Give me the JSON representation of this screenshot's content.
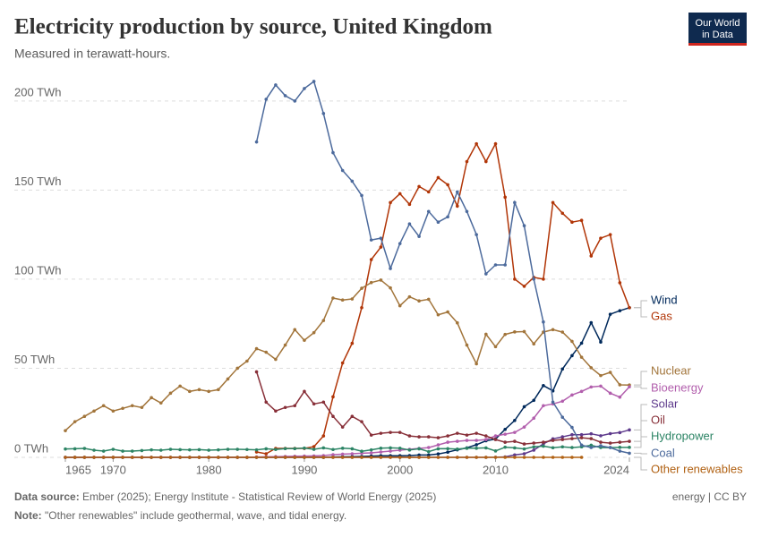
{
  "chart_data": {
    "type": "line",
    "title": "Electricity production by source, United Kingdom",
    "subtitle": "Measured in terawatt-hours.",
    "logo": [
      "Our World",
      "in Data"
    ],
    "source_label": "Data source:",
    "source": "Ember (2025); Energy Institute - Statistical Review of World Energy (2025)",
    "note_label": "Note:",
    "note": "\"Other renewables\" include geothermal, wave, and tidal energy.",
    "license": "energy | CC BY",
    "x": [
      1965,
      1966,
      1967,
      1968,
      1969,
      1970,
      1971,
      1972,
      1973,
      1974,
      1975,
      1976,
      1977,
      1978,
      1979,
      1980,
      1981,
      1982,
      1983,
      1984,
      1985,
      1986,
      1987,
      1988,
      1989,
      1990,
      1991,
      1992,
      1993,
      1994,
      1995,
      1996,
      1997,
      1998,
      1999,
      2000,
      2001,
      2002,
      2003,
      2004,
      2005,
      2006,
      2007,
      2008,
      2009,
      2010,
      2011,
      2012,
      2013,
      2014,
      2015,
      2016,
      2017,
      2018,
      2019,
      2020,
      2021,
      2022,
      2023,
      2024
    ],
    "xlim": [
      1965,
      2024
    ],
    "xticks": [
      1965,
      1970,
      1980,
      1990,
      2000,
      2010,
      2024
    ],
    "ylim": [
      0,
      215
    ],
    "yticks": [
      {
        "value": 0,
        "label": "0 TWh"
      },
      {
        "value": 50,
        "label": "50 TWh"
      },
      {
        "value": 100,
        "label": "100 TWh"
      },
      {
        "value": 150,
        "label": "150 TWh"
      },
      {
        "value": 200,
        "label": "200 TWh"
      }
    ],
    "grid": true,
    "series": [
      {
        "name": "Wind",
        "color": "#00295b",
        "values": [
          0,
          0,
          0,
          0,
          0,
          0,
          0,
          0,
          0,
          0,
          0,
          0,
          0,
          0,
          0,
          0,
          0,
          0,
          0,
          0,
          0,
          0,
          0,
          0,
          0,
          0,
          0,
          0.03,
          0.2,
          0.3,
          0.4,
          0.5,
          0.7,
          0.9,
          0.9,
          0.9,
          1,
          1.3,
          1.3,
          1.9,
          2.9,
          4.2,
          5.3,
          7.1,
          9.3,
          10.3,
          15.7,
          20.7,
          28.4,
          32,
          40.3,
          37.3,
          49.6,
          57.1,
          64.1,
          75.6,
          64.7,
          80.3,
          82.3,
          84
        ]
      },
      {
        "name": "Gas",
        "color": "#b13507",
        "values": [
          null,
          null,
          null,
          null,
          null,
          null,
          null,
          null,
          null,
          null,
          null,
          null,
          null,
          null,
          null,
          null,
          null,
          null,
          null,
          null,
          3,
          2,
          5,
          5,
          5,
          5,
          6,
          12,
          34,
          53,
          64,
          84,
          111,
          118,
          143,
          148,
          142,
          152,
          149,
          157,
          153,
          141,
          166,
          176,
          166,
          176,
          146,
          100,
          96,
          101,
          100,
          143,
          137,
          132,
          133,
          113,
          123,
          125,
          98,
          84
        ]
      },
      {
        "name": "Nuclear",
        "color": "#a2753b",
        "values": [
          15,
          20,
          23,
          26,
          29,
          26,
          27.5,
          29,
          28,
          33.5,
          30.5,
          36,
          40,
          37,
          38,
          37,
          38,
          44,
          50,
          54,
          61,
          59,
          55,
          63,
          71.7,
          65.7,
          70,
          76.8,
          89.4,
          88.3,
          88.9,
          94.9,
          98.1,
          99.5,
          95.1,
          85.1,
          90.1,
          87.8,
          88.7,
          80,
          81.6,
          75.5,
          63,
          52.5,
          69.1,
          62.1,
          69,
          70.4,
          70.6,
          63.7,
          70.3,
          71.7,
          70.3,
          65.1,
          56.2,
          50.3,
          45.9,
          47.7,
          40.7,
          40.6
        ]
      },
      {
        "name": "Bioenergy",
        "color": "#b25fad",
        "values": [
          0,
          0,
          0,
          0,
          0,
          0,
          0,
          0,
          0,
          0,
          0,
          0,
          0,
          0,
          0,
          0,
          0,
          0,
          0,
          0,
          0.2,
          0.3,
          0.4,
          0.5,
          0.6,
          0.7,
          0.8,
          1,
          1.5,
          1.8,
          2,
          2.3,
          2.5,
          3,
          3.5,
          4,
          4.5,
          5,
          5.5,
          7,
          8.5,
          9,
          9.5,
          9.5,
          10,
          12,
          13,
          14,
          17,
          22,
          29,
          30,
          31.5,
          35,
          37,
          39.5,
          40,
          36,
          33.8,
          39.6
        ]
      },
      {
        "name": "Solar",
        "color": "#5e3a8c",
        "values": [
          0,
          0,
          0,
          0,
          0,
          0,
          0,
          0,
          0,
          0,
          0,
          0,
          0,
          0,
          0,
          0,
          0,
          0,
          0,
          0,
          0,
          0,
          0,
          0,
          0,
          0,
          0,
          0,
          0,
          0,
          0,
          0,
          0,
          0,
          0,
          0,
          0,
          0,
          0,
          0,
          0,
          0,
          0,
          0,
          0,
          0.04,
          0.24,
          1.35,
          2,
          4.05,
          7.53,
          10.4,
          11.5,
          12.7,
          12.7,
          13.2,
          12.1,
          13.3,
          13.9,
          15.4
        ]
      },
      {
        "name": "Oil",
        "color": "#883039",
        "values": [
          null,
          null,
          null,
          null,
          null,
          null,
          null,
          null,
          null,
          null,
          null,
          null,
          null,
          null,
          null,
          null,
          null,
          null,
          null,
          null,
          48,
          31,
          26,
          28,
          29,
          37,
          30,
          31,
          23,
          17,
          23,
          20,
          12.5,
          13.5,
          14,
          14,
          12,
          11.5,
          11.5,
          11,
          12,
          13.5,
          12.5,
          13.5,
          12,
          10,
          8.5,
          9,
          7.5,
          8,
          8.5,
          9.5,
          10,
          10.5,
          11,
          10.5,
          8.5,
          8,
          8.5,
          9
        ]
      },
      {
        "name": "Hydropower",
        "color": "#2c8465",
        "values": [
          4.7,
          4.8,
          5.0,
          4.0,
          3.5,
          4.5,
          3.5,
          3.5,
          3.8,
          4.2,
          4.0,
          4.5,
          4.3,
          4.2,
          4.3,
          4.0,
          4.2,
          4.5,
          4.5,
          4.4,
          4.2,
          4.8,
          4.4,
          4.9,
          4.9,
          5.2,
          4.5,
          5.3,
          4.4,
          5.1,
          4.8,
          3.4,
          4.2,
          5.1,
          5.3,
          5.1,
          4.1,
          4.8,
          3.2,
          4.8,
          4.9,
          4.6,
          5.1,
          5.1,
          5.3,
          3.6,
          5.7,
          5.3,
          4.7,
          5.9,
          6.3,
          5.4,
          5.9,
          5.5,
          5.9,
          6.8,
          5.5,
          5.5,
          5.6,
          5.6
        ]
      },
      {
        "name": "Coal",
        "color": "#4c6a9c",
        "values": [
          null,
          null,
          null,
          null,
          null,
          null,
          null,
          null,
          null,
          null,
          null,
          null,
          null,
          null,
          null,
          null,
          null,
          null,
          null,
          null,
          177,
          201,
          209,
          203,
          200,
          207,
          211,
          193,
          171,
          161,
          155,
          147,
          122,
          123,
          106,
          120,
          131,
          124,
          138,
          132,
          135,
          149,
          138,
          125,
          103,
          108,
          108,
          143,
          130,
          100,
          76,
          31,
          22.5,
          16.8,
          6.9,
          5.5,
          6.5,
          5.5,
          3.5,
          2.3
        ]
      },
      {
        "name": "Other renewables",
        "color": "#b16214",
        "values": [
          0,
          0,
          0,
          0,
          0,
          0,
          0,
          0,
          0,
          0,
          0,
          0,
          0,
          0,
          0,
          0,
          0,
          0,
          0,
          0,
          0,
          0,
          0,
          0,
          0,
          0,
          0,
          0,
          0,
          0,
          0,
          0,
          0,
          0,
          0,
          0,
          0,
          0,
          0,
          0,
          0,
          0,
          0,
          0,
          0,
          0,
          0,
          0,
          0,
          0,
          0,
          0,
          0,
          0,
          0,
          null,
          null,
          null,
          null,
          null
        ]
      }
    ]
  }
}
